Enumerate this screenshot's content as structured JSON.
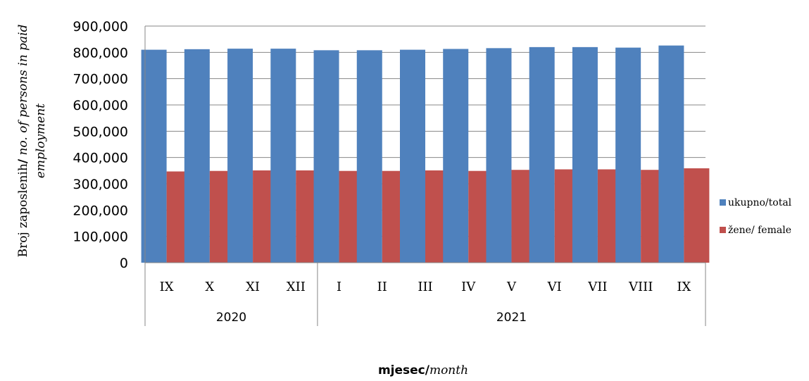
{
  "chart_data": {
    "type": "bar",
    "categories": [
      "IX",
      "X",
      "XI",
      "XII",
      "I",
      "II",
      "III",
      "IV",
      "V",
      "VI",
      "VII",
      "VIII",
      "IX"
    ],
    "groups": [
      {
        "label": "2020",
        "start": 0,
        "end": 4
      },
      {
        "label": "2021",
        "start": 4,
        "end": 13
      }
    ],
    "series": [
      {
        "name": "ukupno/total",
        "color": "#4F81BD",
        "values": [
          810000,
          812000,
          814000,
          814000,
          808000,
          808000,
          810000,
          813000,
          816000,
          820000,
          820000,
          818000,
          826000
        ]
      },
      {
        "name": "žene/ female",
        "color": "#C0504D",
        "values": [
          347000,
          349000,
          351000,
          351000,
          349000,
          349000,
          351000,
          349000,
          353000,
          355000,
          355000,
          353000,
          359000
        ]
      }
    ],
    "y_ticks": [
      "0",
      "100,000",
      "200,000",
      "300,000",
      "400,000",
      "500,000",
      "600,000",
      "700,000",
      "800,000",
      "900,000"
    ],
    "ylim": [
      0,
      900000
    ],
    "ylabel_normal": "Broj zaposlenih",
    "ylabel_slash": "/",
    "ylabel_italic_line1": " no. of  persons  in paid",
    "ylabel_italic_line2": "employment",
    "xlabel_bold": "mjesec/",
    "xlabel_italic": "month",
    "grid": true,
    "legend_position": "right"
  }
}
